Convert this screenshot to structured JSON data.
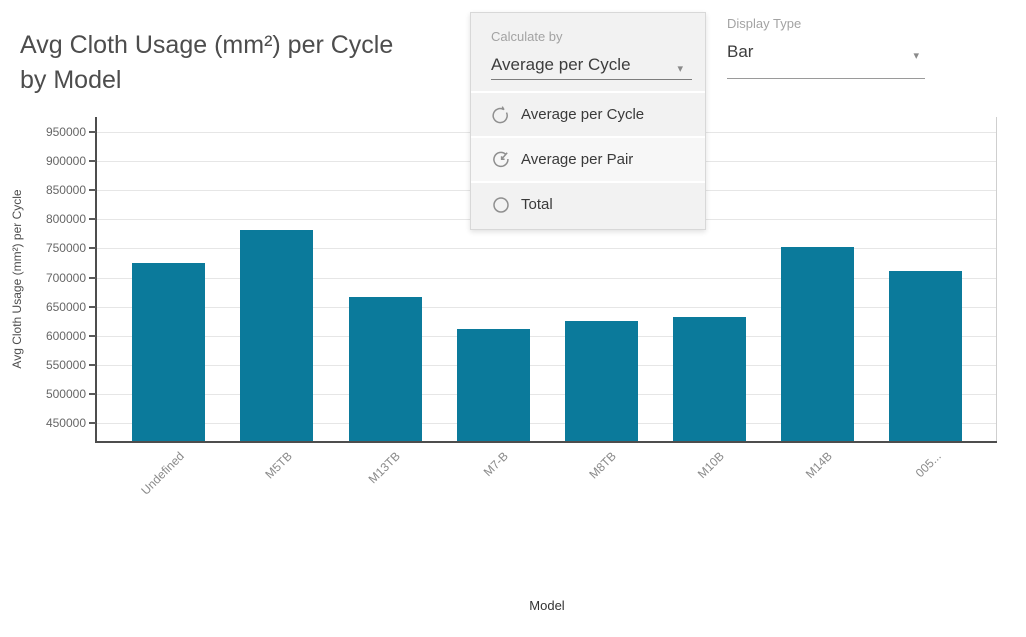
{
  "header": {
    "title": "Avg Cloth Usage (mm²) per Cycle by Model"
  },
  "controls": {
    "calculate_by": {
      "label": "Calculate by",
      "selected": "Average per Cycle",
      "caret": "▾",
      "options": [
        {
          "label": "Average per Cycle",
          "icon": "radio-cycle-icon",
          "highlighted": false
        },
        {
          "label": "Average per Pair",
          "icon": "radio-arrow-icon",
          "highlighted": true
        },
        {
          "label": "Total",
          "icon": "radio-circle-icon",
          "highlighted": false
        }
      ]
    },
    "display_type": {
      "label": "Display Type",
      "selected": "Bar",
      "caret": "▾"
    }
  },
  "chart_data": {
    "type": "bar",
    "title": "Avg Cloth Usage (mm²) per Cycle by Model",
    "xlabel": "Model",
    "ylabel": "Avg Cloth Usage (mm²) per Cycle",
    "categories": [
      "Undefined",
      "M5TB",
      "M13TB",
      "M7-B",
      "M8TB",
      "M10B",
      "M14B",
      "005..."
    ],
    "values": [
      725000,
      781000,
      667000,
      612000,
      626000,
      633000,
      752000,
      712000
    ],
    "ylim": [
      419000,
      976000
    ],
    "yticks": [
      450000,
      500000,
      550000,
      600000,
      650000,
      700000,
      750000,
      800000,
      850000,
      900000,
      950000
    ],
    "grid": true,
    "legend": "none",
    "bar_color": "#0b7a9b",
    "gridline_color": "#e6e6e6",
    "axis_color": "#4d4d4d"
  }
}
